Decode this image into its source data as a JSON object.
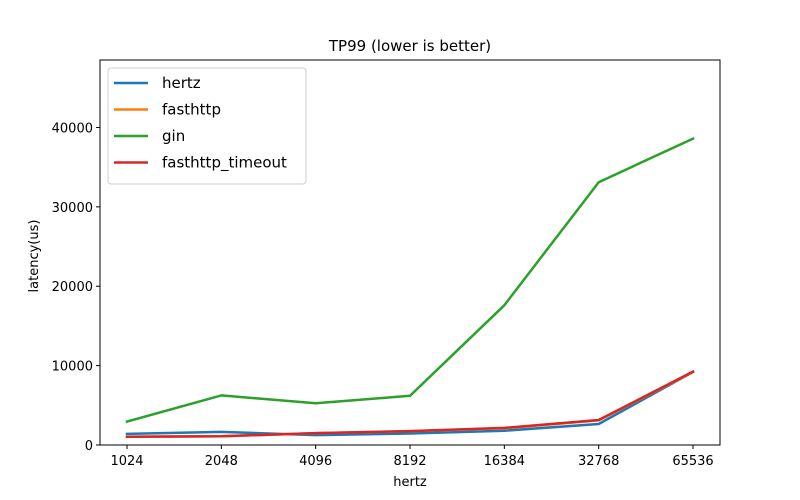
{
  "chart_data": {
    "type": "line",
    "title": "TP99 (lower is better)",
    "xlabel": "hertz",
    "ylabel": "latency(us)",
    "categories": [
      "1024",
      "2048",
      "4096",
      "8192",
      "16384",
      "32768",
      "65536"
    ],
    "ylim": [
      0,
      48500
    ],
    "yticks": [
      0,
      10000,
      20000,
      30000,
      40000
    ],
    "legend_position": "top-left",
    "grid": false,
    "series": [
      {
        "name": "hertz",
        "color": "#1f77b4",
        "values": [
          1400,
          1650,
          1250,
          1450,
          1800,
          2650,
          9200
        ]
      },
      {
        "name": "fasthttp",
        "color": "#ff7f0e",
        "values": [
          1050,
          1100,
          1500,
          1750,
          2100,
          3100,
          9200
        ]
      },
      {
        "name": "gin",
        "color": "#2ca02c",
        "values": [
          2950,
          6250,
          5250,
          6200,
          17600,
          33100,
          38600
        ]
      },
      {
        "name": "fasthttp_timeout",
        "color": "#d62728",
        "values": [
          1050,
          1100,
          1500,
          1750,
          2150,
          3150,
          9250
        ]
      }
    ]
  }
}
